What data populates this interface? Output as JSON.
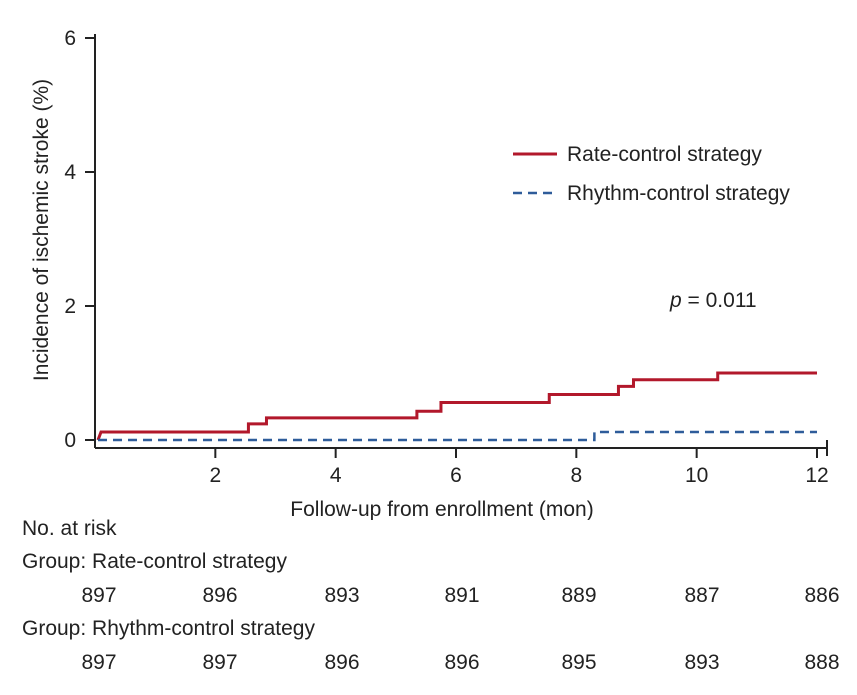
{
  "chart_data": {
    "type": "line",
    "xlabel": "Follow-up from enrollment (mon)",
    "ylabel": "Incidence of ischemic stroke (%)",
    "xlim": [
      0,
      12
    ],
    "ylim": [
      0,
      6
    ],
    "x_ticks": [
      2,
      4,
      6,
      8,
      10,
      12
    ],
    "y_ticks": [
      0,
      2,
      4,
      6
    ],
    "grid": false,
    "legend_position": "top-right",
    "annotation": {
      "text": "p = 0.011",
      "italic_prefix": "p",
      "rest": " = 0.011"
    },
    "series": [
      {
        "name": "Rate-control strategy",
        "color": "#b2182b",
        "style": "solid",
        "step_points": [
          [
            0.05,
            0.0
          ],
          [
            0.1,
            0.12
          ],
          [
            2.55,
            0.12
          ],
          [
            2.55,
            0.24
          ],
          [
            2.85,
            0.24
          ],
          [
            2.85,
            0.33
          ],
          [
            5.35,
            0.33
          ],
          [
            5.35,
            0.43
          ],
          [
            5.75,
            0.43
          ],
          [
            5.75,
            0.56
          ],
          [
            7.55,
            0.56
          ],
          [
            7.55,
            0.68
          ],
          [
            8.7,
            0.68
          ],
          [
            8.7,
            0.8
          ],
          [
            8.95,
            0.8
          ],
          [
            8.95,
            0.9
          ],
          [
            10.35,
            0.9
          ],
          [
            10.35,
            1.0
          ],
          [
            12.0,
            1.0
          ]
        ]
      },
      {
        "name": "Rhythm-control strategy",
        "color": "#2e5c9a",
        "style": "dashed",
        "step_points": [
          [
            0.05,
            0.0
          ],
          [
            8.3,
            0.0
          ],
          [
            8.3,
            0.12
          ],
          [
            12.0,
            0.12
          ]
        ]
      }
    ]
  },
  "risk_table": {
    "title": "No. at risk",
    "groups": [
      {
        "label": "Group: Rate-control strategy",
        "values": [
          "897",
          "896",
          "893",
          "891",
          "889",
          "887",
          "886"
        ]
      },
      {
        "label": "Group: Rhythm-control strategy",
        "values": [
          "897",
          "897",
          "896",
          "896",
          "895",
          "893",
          "888"
        ]
      }
    ]
  }
}
